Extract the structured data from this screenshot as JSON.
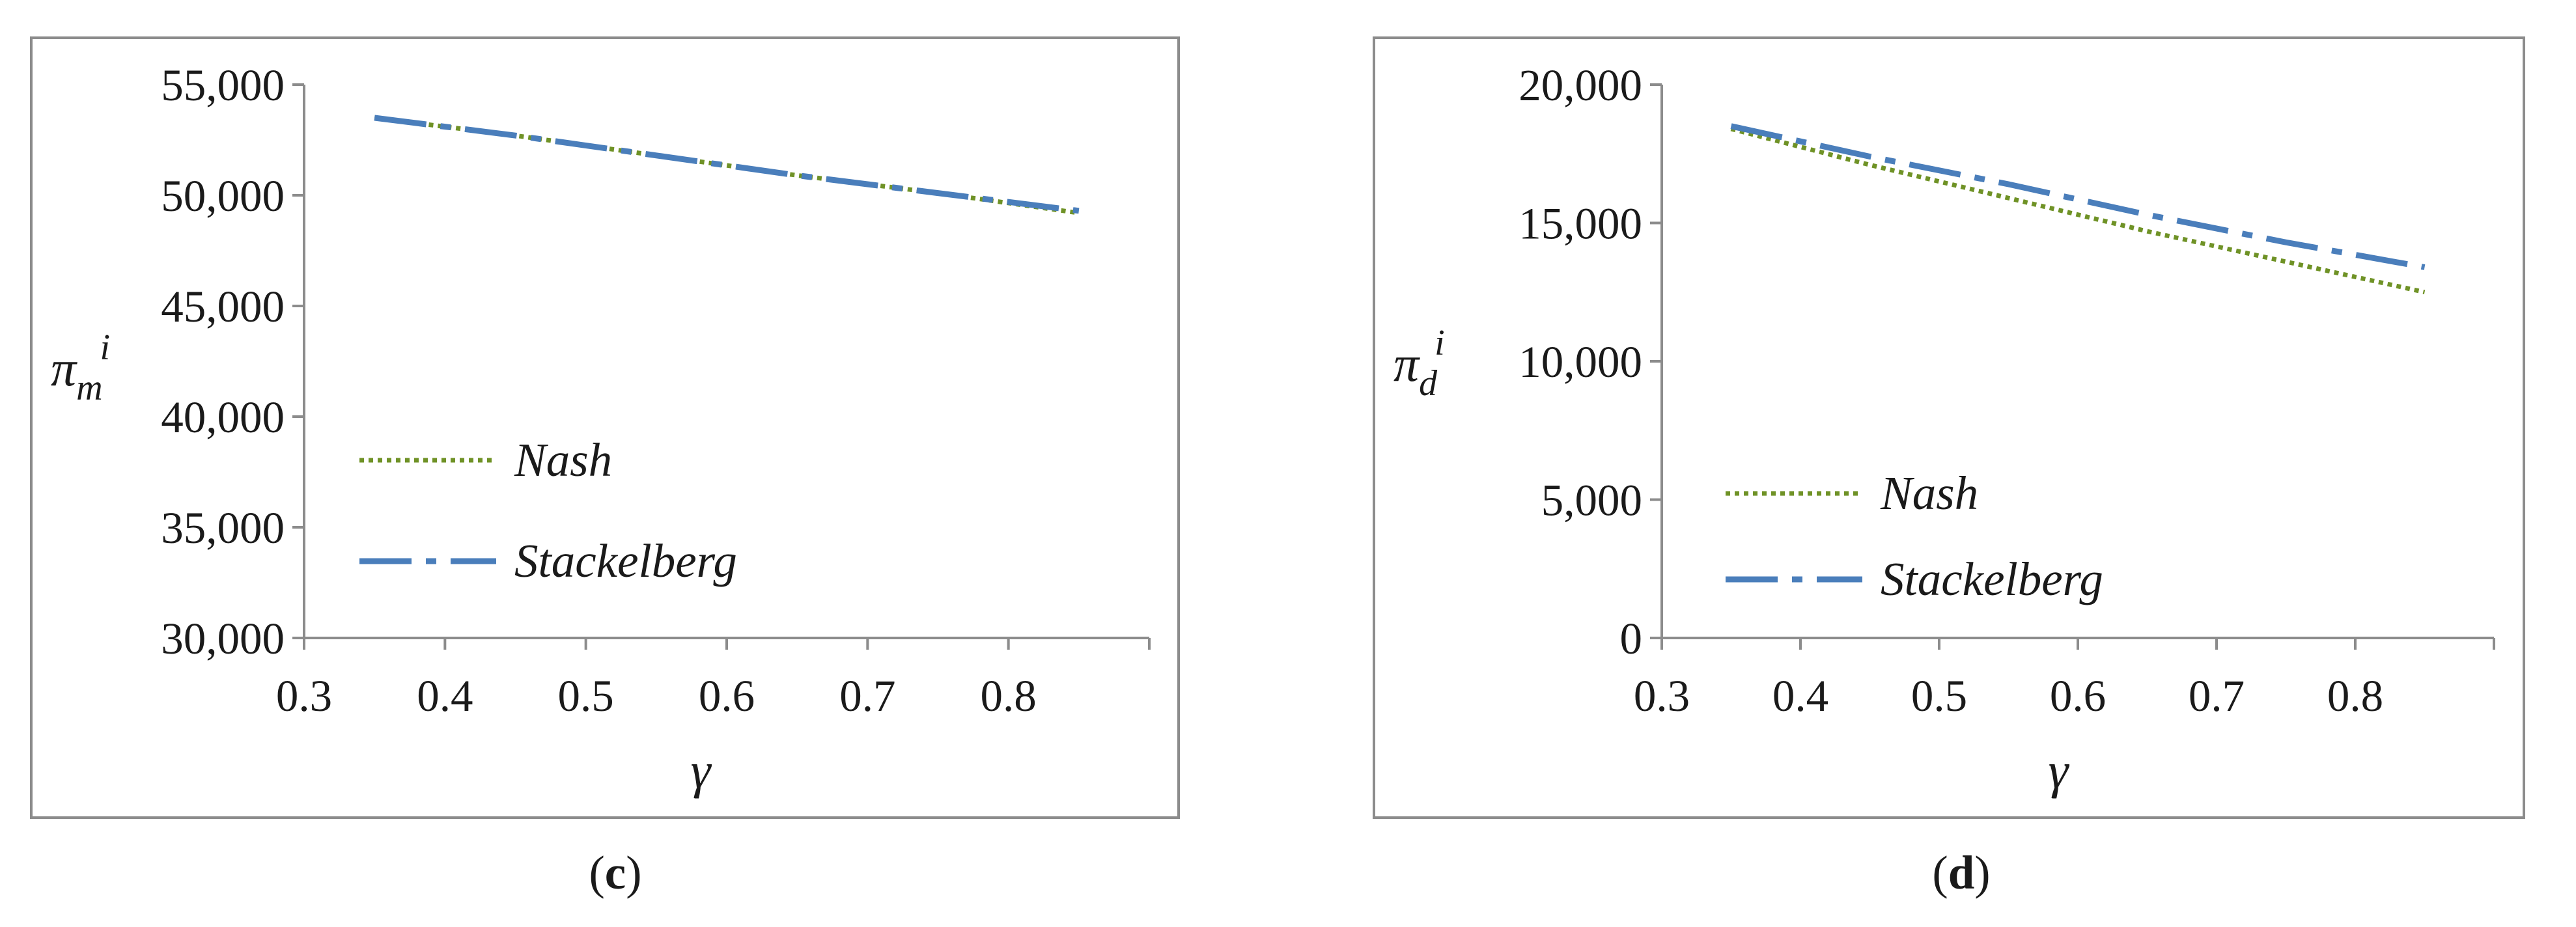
{
  "colors": {
    "nash": "#6f9226",
    "stackelberg": "#4a7ebb",
    "frame": "#8c8c8c",
    "axis": "#8c8c8c"
  },
  "chart_data": [
    {
      "type": "line",
      "panel": "c",
      "caption_open": "(",
      "caption_letter": "c",
      "caption_close": ")",
      "ylabel_main": "π",
      "ylabel_sub": "m",
      "ylabel_sup": "i",
      "xlabel": "γ",
      "ylim": [
        30000,
        55000
      ],
      "yticks": [
        30000,
        35000,
        40000,
        45000,
        50000,
        55000
      ],
      "ytick_labels": [
        "30,000",
        "35,000",
        "40,000",
        "45,000",
        "50,000",
        "55,000"
      ],
      "xticks": [
        0.3,
        0.4,
        0.5,
        0.6,
        0.7,
        0.8
      ],
      "xtick_labels": [
        "0.3",
        "0.4",
        "0.5",
        "0.6",
        "0.7",
        "0.8"
      ],
      "legend_position": "center-left",
      "series": [
        {
          "name": "Nash",
          "style": "dotted",
          "x": [
            0.35,
            0.45,
            0.55,
            0.65,
            0.75,
            0.85
          ],
          "y": [
            53500,
            52700,
            51800,
            50900,
            50100,
            49200
          ]
        },
        {
          "name": "Stackelberg",
          "style": "dashdot",
          "x": [
            0.35,
            0.45,
            0.55,
            0.65,
            0.75,
            0.85
          ],
          "y": [
            53500,
            52700,
            51800,
            50900,
            50100,
            49300
          ]
        }
      ]
    },
    {
      "type": "line",
      "panel": "d",
      "caption_open": "(",
      "caption_letter": "d",
      "caption_close": ")",
      "ylabel_main": "π",
      "ylabel_sub": "d",
      "ylabel_sup": "i",
      "xlabel": "γ",
      "ylim": [
        0,
        20000
      ],
      "yticks": [
        0,
        5000,
        10000,
        15000,
        20000
      ],
      "ytick_labels": [
        "0",
        "5,000",
        "10,000",
        "15,000",
        "20,000"
      ],
      "xticks": [
        0.3,
        0.4,
        0.5,
        0.6,
        0.7,
        0.8
      ],
      "xtick_labels": [
        "0.3",
        "0.4",
        "0.5",
        "0.6",
        "0.7",
        "0.8"
      ],
      "legend_position": "bottom-left",
      "series": [
        {
          "name": "Nash",
          "style": "dotted",
          "x": [
            0.35,
            0.45,
            0.55,
            0.65,
            0.75,
            0.85
          ],
          "y": [
            18400,
            17100,
            15900,
            14700,
            13600,
            12500
          ]
        },
        {
          "name": "Stackelberg",
          "style": "dashdot",
          "x": [
            0.35,
            0.45,
            0.55,
            0.65,
            0.75,
            0.85
          ],
          "y": [
            18500,
            17400,
            16400,
            15300,
            14300,
            13400
          ]
        }
      ]
    }
  ]
}
